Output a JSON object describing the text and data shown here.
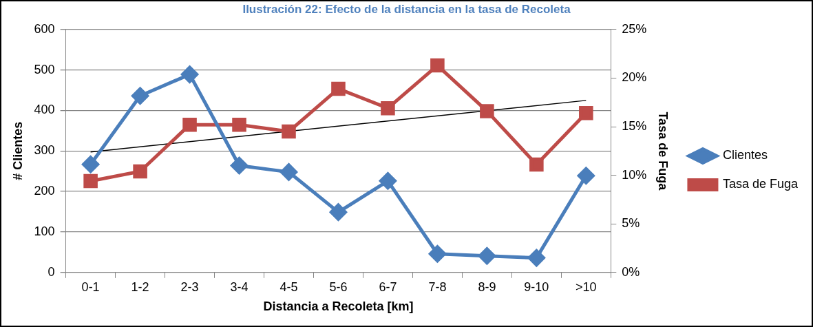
{
  "chart_data": {
    "type": "line",
    "title": "Ilustración 22: Efecto de la distancia en la tasa de Recoleta",
    "xlabel": "Distancia a Recoleta [km]",
    "ylabel": "# Clientes",
    "y2label": "Tasa de Fuga",
    "categories": [
      "0-1",
      "1-2",
      "2-3",
      "3-4",
      "4-5",
      "5-6",
      "6-7",
      "7-8",
      "8-9",
      "9-10",
      ">10"
    ],
    "series": [
      {
        "name": "Clientes",
        "color": "#4a7ebb",
        "marker": "diamond",
        "values": [
          267,
          436,
          489,
          264,
          248,
          149,
          226,
          46,
          41,
          36,
          239
        ]
      },
      {
        "name": "Tasa de Fuga",
        "color": "#be4b48",
        "marker": "square",
        "axis": "y2",
        "values": [
          9.4,
          10.4,
          15.2,
          15.2,
          14.5,
          18.9,
          16.9,
          21.3,
          16.6,
          11.1,
          16.4
        ]
      },
      {
        "type": "line",
        "color": "#000000",
        "marker": "none",
        "axis": "y2",
        "x": [
          "0-1",
          ">10"
        ],
        "values": [
          12.4,
          17.7
        ]
      }
    ],
    "ylim": [
      0,
      600
    ],
    "yticks": [
      0,
      100,
      200,
      300,
      400,
      500,
      600
    ],
    "y2lim": [
      0,
      25
    ],
    "y2ticks": [
      {
        "value": 0,
        "label": "0%"
      },
      {
        "value": 5,
        "label": "5%"
      },
      {
        "value": 10,
        "label": "10%"
      },
      {
        "value": 15,
        "label": "15%"
      },
      {
        "value": 20,
        "label": "20%"
      },
      {
        "value": 25,
        "label": "25%"
      }
    ],
    "grid": "y",
    "legend": "right"
  }
}
